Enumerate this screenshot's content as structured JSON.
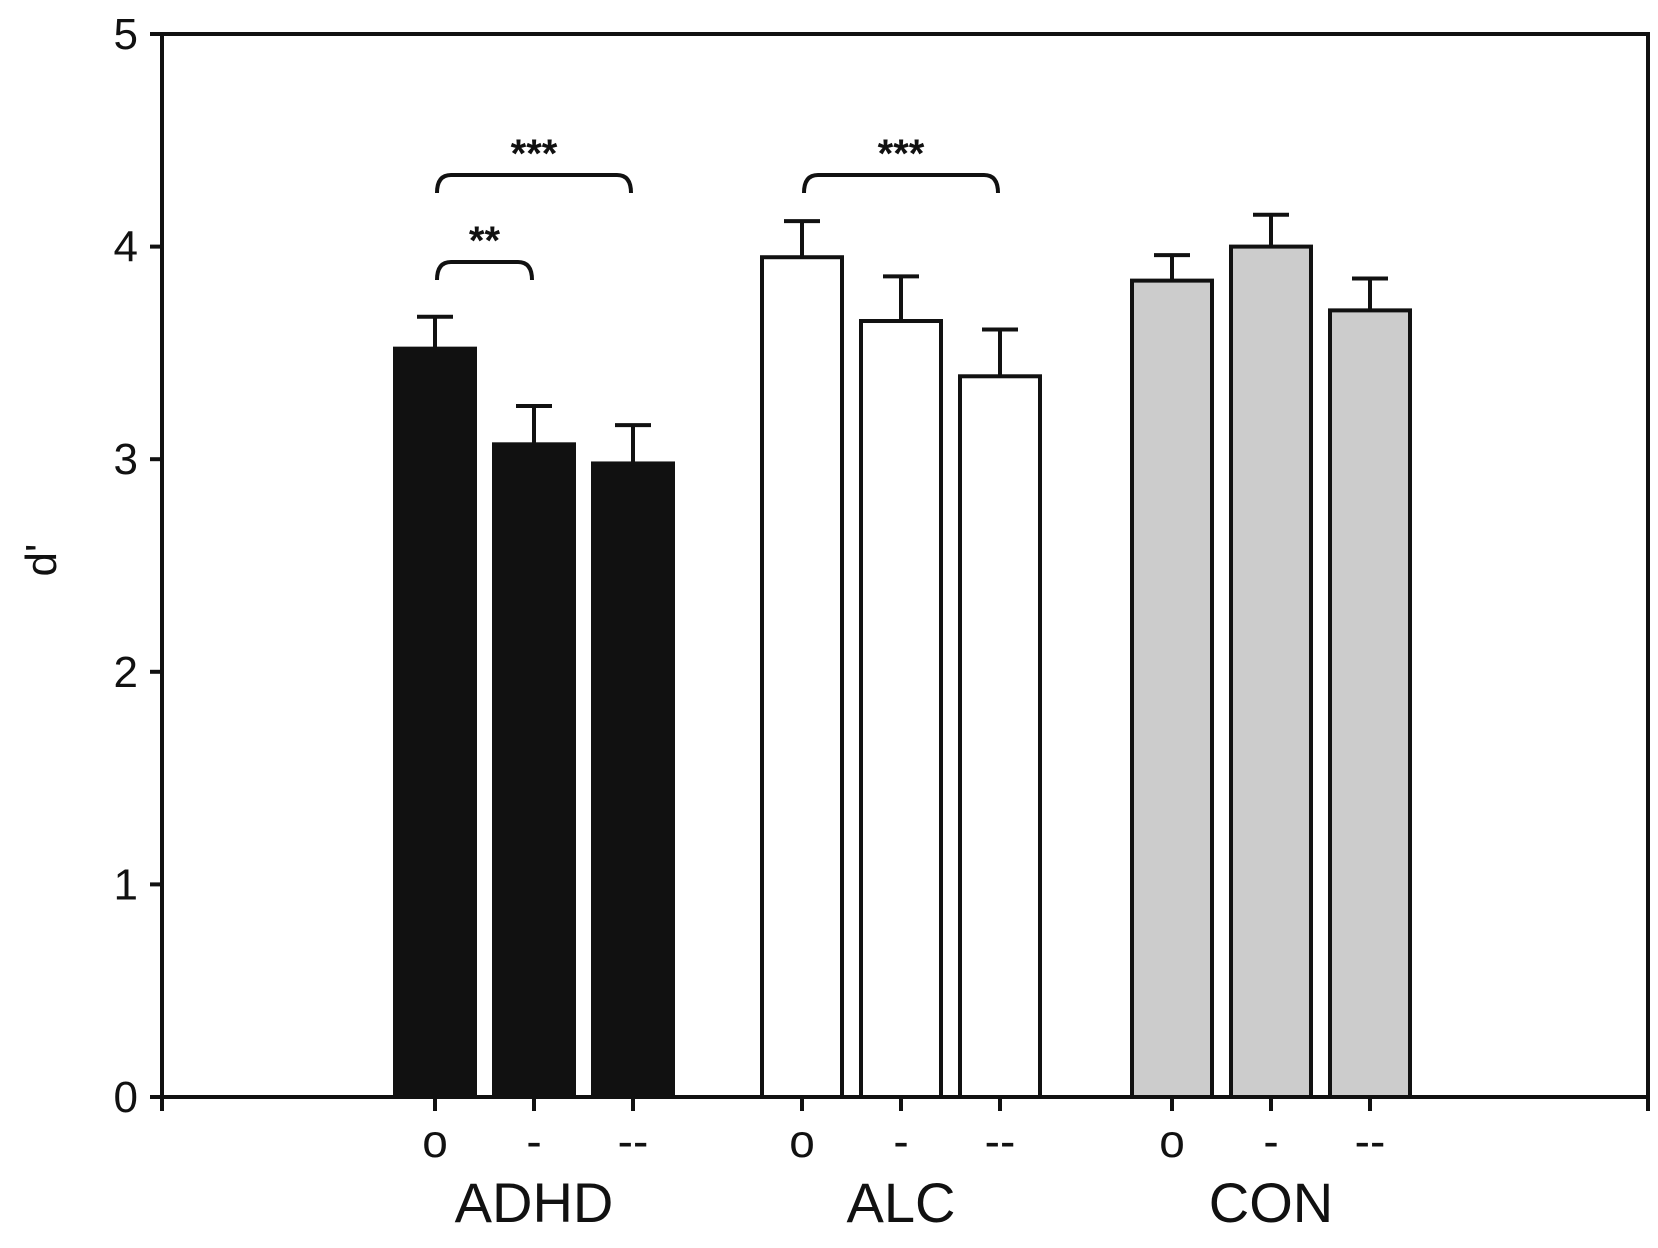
{
  "chart_data": {
    "type": "bar",
    "ylabel": "d'",
    "ylim": [
      0,
      5
    ],
    "yticks": [
      "0",
      "1",
      "2",
      "3",
      "4",
      "5"
    ],
    "groups": [
      {
        "name": "ADHD",
        "color": "#111111",
        "bars": [
          {
            "label": "o",
            "value": 3.52,
            "error": 0.15
          },
          {
            "label": "-",
            "value": 3.07,
            "error": 0.18
          },
          {
            "label": "--",
            "value": 2.98,
            "error": 0.18
          }
        ]
      },
      {
        "name": "ALC",
        "color": "#ffffff",
        "bars": [
          {
            "label": "o",
            "value": 3.95,
            "error": 0.17
          },
          {
            "label": "-",
            "value": 3.65,
            "error": 0.21
          },
          {
            "label": "--",
            "value": 3.39,
            "error": 0.22
          }
        ]
      },
      {
        "name": "CON",
        "color": "#cccccc",
        "bars": [
          {
            "label": "o",
            "value": 3.84,
            "error": 0.12
          },
          {
            "label": "-",
            "value": 4.0,
            "error": 0.15
          },
          {
            "label": "--",
            "value": 3.7,
            "error": 0.15
          }
        ]
      }
    ],
    "significance": [
      {
        "group": "ADHD",
        "from": "o",
        "to": "-",
        "label": "**"
      },
      {
        "group": "ADHD",
        "from": "o",
        "to": "--",
        "label": "***"
      },
      {
        "group": "ALC",
        "from": "o",
        "to": "--",
        "label": "***"
      }
    ]
  }
}
